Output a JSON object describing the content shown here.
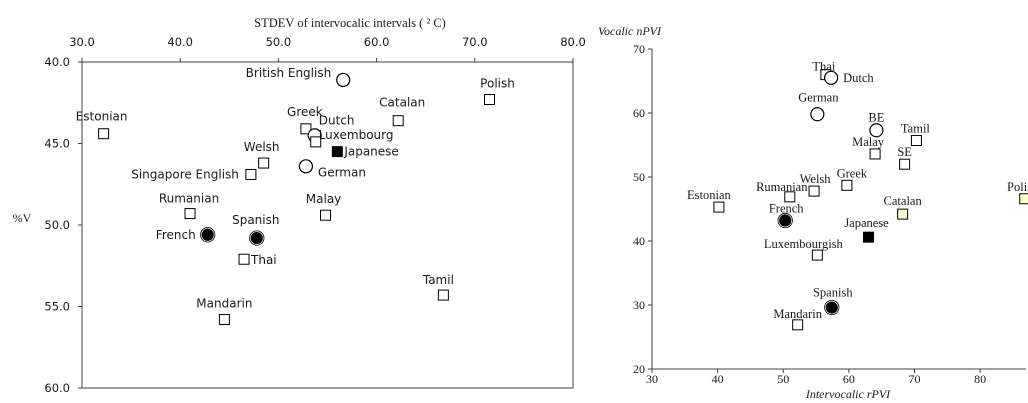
{
  "chart_data": [
    {
      "type": "scatter",
      "title": "",
      "xlabel": "STDEV of intervocalic intervals ( ² C)",
      "ylabel": "%V",
      "xlim": [
        30,
        80
      ],
      "ylim": [
        40,
        60
      ],
      "y_inverted": true,
      "x_axis_position": "top",
      "x_ticks": [
        "30.0",
        "40.0",
        "50.0",
        "60.0",
        "70.0",
        "80.0"
      ],
      "y_ticks": [
        "40.0",
        "45.0",
        "50.0",
        "55.0",
        "60.0"
      ],
      "grid": false,
      "points": [
        {
          "label": "British English",
          "x": 56.6,
          "y": 41.1,
          "marker": "open-circle"
        },
        {
          "label": "Polish",
          "x": 71.5,
          "y": 42.3,
          "marker": "open-square"
        },
        {
          "label": "Catalan",
          "x": 62.2,
          "y": 43.6,
          "marker": "open-square"
        },
        {
          "label": "Estonian",
          "x": 32.2,
          "y": 44.4,
          "marker": "open-square"
        },
        {
          "label": "Greek",
          "x": 52.8,
          "y": 44.1,
          "marker": "open-square"
        },
        {
          "label": "Dutch",
          "x": 53.7,
          "y": 44.5,
          "marker": "open-circle"
        },
        {
          "label": "Luxembourg",
          "x": 53.8,
          "y": 44.9,
          "marker": "open-square"
        },
        {
          "label": "Japanese",
          "x": 56.0,
          "y": 45.5,
          "marker": "filled-square"
        },
        {
          "label": "Welsh",
          "x": 48.5,
          "y": 46.2,
          "marker": "open-square"
        },
        {
          "label": "German",
          "x": 52.8,
          "y": 46.4,
          "marker": "open-circle"
        },
        {
          "label": "Singapore English",
          "x": 47.2,
          "y": 46.9,
          "marker": "open-square"
        },
        {
          "label": "Rumanian",
          "x": 41.0,
          "y": 49.3,
          "marker": "open-square"
        },
        {
          "label": "Malay",
          "x": 54.8,
          "y": 49.4,
          "marker": "open-square"
        },
        {
          "label": "French",
          "x": 42.8,
          "y": 50.6,
          "marker": "filled-circle"
        },
        {
          "label": "Spanish",
          "x": 47.8,
          "y": 50.8,
          "marker": "filled-circle"
        },
        {
          "label": "Thai",
          "x": 46.5,
          "y": 52.1,
          "marker": "open-square"
        },
        {
          "label": "Tamil",
          "x": 66.8,
          "y": 54.3,
          "marker": "open-square"
        },
        {
          "label": "Mandarin",
          "x": 44.5,
          "y": 55.8,
          "marker": "open-square"
        }
      ]
    },
    {
      "type": "scatter",
      "title": "",
      "xlabel": "Intervocalic rPVI",
      "ylabel": "Vocalic nPVI",
      "xlim": [
        30,
        87
      ],
      "ylim": [
        20,
        70
      ],
      "x_ticks": [
        "30",
        "40",
        "50",
        "60",
        "70",
        "80"
      ],
      "y_ticks": [
        "20",
        "30",
        "40",
        "50",
        "60",
        "70"
      ],
      "grid": false,
      "points": [
        {
          "label": "Thai",
          "x": 56.5,
          "y": 66.0,
          "marker": "open-square"
        },
        {
          "label": "Dutch",
          "x": 57.3,
          "y": 65.5,
          "marker": "open-circle"
        },
        {
          "label": "German",
          "x": 55.2,
          "y": 59.8,
          "marker": "open-circle"
        },
        {
          "label": "BE",
          "x": 64.2,
          "y": 57.3,
          "marker": "open-circle"
        },
        {
          "label": "Tamil",
          "x": 70.3,
          "y": 55.7,
          "marker": "open-square"
        },
        {
          "label": "Malay",
          "x": 64.0,
          "y": 53.6,
          "marker": "open-square"
        },
        {
          "label": "SE",
          "x": 68.5,
          "y": 52.0,
          "marker": "open-square"
        },
        {
          "label": "Polish",
          "x": 86.8,
          "y": 46.6,
          "marker": "yellow-square"
        },
        {
          "label": "Estonian",
          "x": 40.2,
          "y": 45.3,
          "marker": "open-square"
        },
        {
          "label": "Rumanian",
          "x": 51.0,
          "y": 46.9,
          "marker": "open-square"
        },
        {
          "label": "Welsh",
          "x": 54.7,
          "y": 47.8,
          "marker": "open-square"
        },
        {
          "label": "Greek",
          "x": 59.7,
          "y": 48.7,
          "marker": "open-square"
        },
        {
          "label": "Catalan",
          "x": 68.2,
          "y": 44.2,
          "marker": "yellow-square"
        },
        {
          "label": "French",
          "x": 50.3,
          "y": 43.2,
          "marker": "filled-circle"
        },
        {
          "label": "Japanese",
          "x": 63.0,
          "y": 40.6,
          "marker": "filled-square"
        },
        {
          "label": "Luxembourgish",
          "x": 55.2,
          "y": 37.8,
          "marker": "open-square"
        },
        {
          "label": "Spanish",
          "x": 57.4,
          "y": 29.6,
          "marker": "filled-circle"
        },
        {
          "label": "Mandarin",
          "x": 52.2,
          "y": 26.9,
          "marker": "open-square"
        }
      ]
    }
  ],
  "colors": {
    "axis": "#404040",
    "marker_stroke": "#000000",
    "marker_fill": "#ffffff",
    "marker_filled": "#000000",
    "marker_yellow": "#ffffcc",
    "text": "#1a1a1a"
  }
}
